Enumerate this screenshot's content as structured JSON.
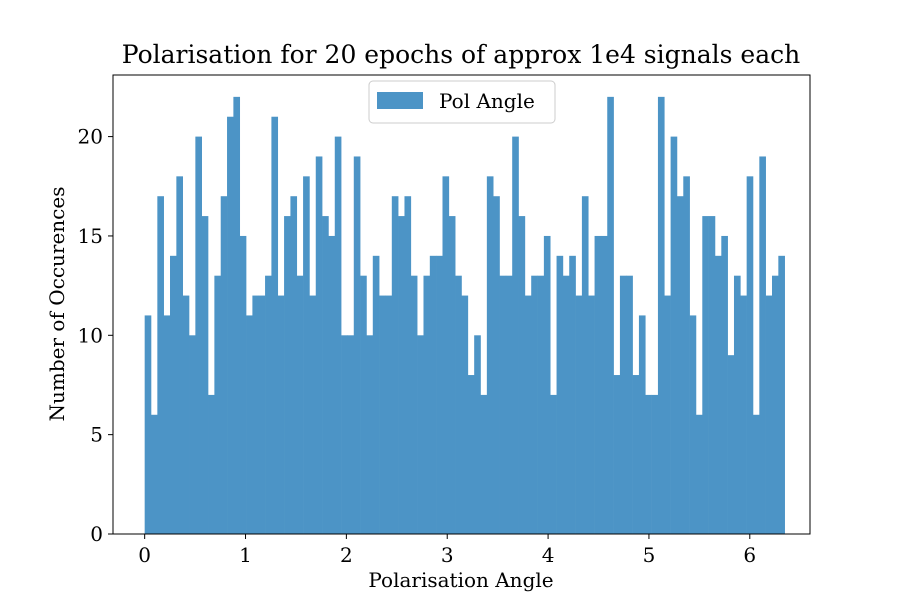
{
  "chart_data": {
    "type": "bar",
    "title": "Polarisation for 20 epochs of approx 1e4 signals each",
    "xlabel": "Polarisation Angle",
    "ylabel": "Number of Occurences",
    "xlim": [
      -0.314,
      6.597
    ],
    "ylim": [
      0,
      23.1
    ],
    "bin_start": 0,
    "bin_width": 0.06283,
    "xticks": [
      0,
      1,
      2,
      3,
      4,
      5,
      6
    ],
    "xtick_labels": [
      "0",
      "1",
      "2",
      "3",
      "4",
      "5",
      "6"
    ],
    "yticks": [
      0,
      5,
      10,
      15,
      20
    ],
    "ytick_labels": [
      "0",
      "5",
      "10",
      "15",
      "20"
    ],
    "grid": false,
    "legend_placement": "upper-center",
    "series": [
      {
        "name": "Pol Angle",
        "color": "#4c94c6",
        "values": [
          11,
          6,
          17,
          11,
          14,
          18,
          12,
          10,
          20,
          16,
          7,
          13,
          17,
          21,
          22,
          15,
          11,
          12,
          12,
          13,
          21,
          12,
          16,
          17,
          13,
          18,
          12,
          19,
          16,
          15,
          20,
          10,
          10,
          19,
          13,
          10,
          14,
          12,
          12,
          17,
          16,
          17,
          13,
          10,
          13,
          14,
          14,
          18,
          16,
          13,
          12,
          8,
          10,
          7,
          18,
          17,
          13,
          13,
          20,
          16,
          12,
          13,
          13,
          15,
          7,
          14,
          13,
          14,
          12,
          17,
          12,
          15,
          15,
          22,
          8,
          13,
          13,
          8,
          11,
          7,
          7,
          22,
          12,
          20,
          17,
          18,
          11,
          6,
          16,
          16,
          14,
          15,
          9,
          13,
          12,
          18,
          6,
          19,
          12,
          13,
          14
        ]
      }
    ]
  }
}
